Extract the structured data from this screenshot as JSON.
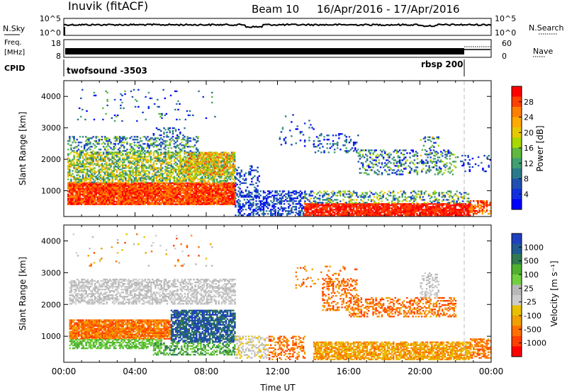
{
  "header": {
    "station": "Inuvik (fitACF)",
    "beam": "Beam 10",
    "date_range": "16/Apr/2016 - 17/Apr/2016"
  },
  "top_panels": {
    "nsky_label": "N.Sky",
    "nsearch_label": "N.Search",
    "noise_ticks_left": [
      "10^5",
      "10^0"
    ],
    "noise_ticks_right": [
      "10^5",
      "10^0"
    ],
    "freq_label_1": "Freq.",
    "freq_label_2": "[MHz]",
    "freq_ticks": [
      "18",
      "8"
    ],
    "nave_label": "Nave",
    "nave_ticks": [
      "60",
      "0"
    ],
    "cpid_label": "CPID",
    "cpid_1": "twofsound -3503",
    "cpid_2": "rbsp 200"
  },
  "chart_data": [
    {
      "type": "heatmap",
      "name": "power",
      "ylabel": "Slant Range [km]",
      "yticks": [
        1000,
        2000,
        3000,
        4000
      ],
      "ylim": [
        180,
        4500
      ],
      "xlim_hours": [
        0,
        24
      ],
      "colorbar_label": "Power [dB]",
      "colorbar_ticks": [
        "28",
        "24",
        "20",
        "16",
        "12",
        "8",
        "4"
      ],
      "colorbar_colors": [
        "#ff0000",
        "#ff4000",
        "#ff8000",
        "#ffaa00",
        "#e8c800",
        "#a8d800",
        "#60b840",
        "#40a070",
        "#2a7a8a",
        "#2050b0",
        "#1030e0",
        "#0000ff"
      ]
    },
    {
      "type": "heatmap",
      "name": "velocity",
      "ylabel": "Slant Range [km]",
      "yticks": [
        1000,
        2000,
        3000,
        4000
      ],
      "ylim": [
        180,
        4500
      ],
      "xlim_hours": [
        0,
        24
      ],
      "xticks": [
        "00:00",
        "04:00",
        "08:00",
        "12:00",
        "16:00",
        "20:00",
        "00:00"
      ],
      "xlabel": "Time UT",
      "colorbar_label": "Velocity [m s⁻¹]",
      "colorbar_ticks": [
        "1000",
        "500",
        "100",
        "25",
        "-25",
        "-100",
        "-500",
        "-1000"
      ],
      "colorbar_colors": [
        "#2040c0",
        "#205a90",
        "#307a50",
        "#50b030",
        "#70d040",
        "#b8b8b8",
        "#cccccc",
        "#e8c000",
        "#f0a000",
        "#ff7000",
        "#ff4000",
        "#ff0000"
      ]
    }
  ]
}
